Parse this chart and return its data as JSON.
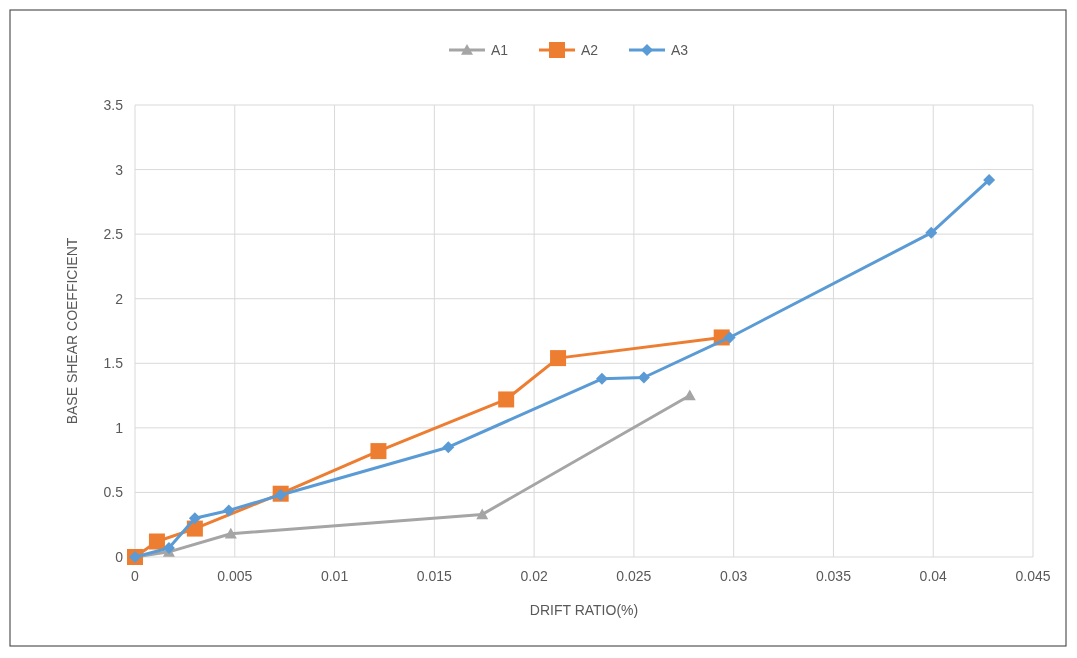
{
  "chart_data": {
    "type": "line",
    "xlabel": "DRIFT RATIO(%)",
    "ylabel": "BASE SHEAR COEFFICIENT",
    "xlim": [
      0,
      0.045
    ],
    "xticks": [
      0,
      0.005,
      0.01,
      0.015,
      0.02,
      0.025,
      0.03,
      0.035,
      0.04,
      0.045
    ],
    "ylim": [
      0,
      3.5
    ],
    "yticks": [
      0,
      0.5,
      1,
      1.5,
      2,
      2.5,
      3,
      3.5
    ],
    "grid": true,
    "legend": "top",
    "line_style": "solid",
    "series": [
      {
        "name": "A1",
        "color": "#a5a5a5",
        "marker": "triangle",
        "x": [
          0,
          0.0017,
          0.0048,
          0.0174,
          0.0278
        ],
        "values": [
          0,
          0.04,
          0.18,
          0.33,
          1.25
        ]
      },
      {
        "name": "A2",
        "color": "#ed7d31",
        "marker": "square",
        "x": [
          0,
          0.0011,
          0.003,
          0.0073,
          0.0122,
          0.0186,
          0.0212,
          0.0294
        ],
        "values": [
          0,
          0.12,
          0.22,
          0.49,
          0.82,
          1.22,
          1.54,
          1.7
        ]
      },
      {
        "name": "A3",
        "color": "#5b9bd5",
        "marker": "diamond",
        "x": [
          0,
          0.0017,
          0.003,
          0.0047,
          0.0073,
          0.0157,
          0.0234,
          0.0255,
          0.0298,
          0.0399,
          0.0428
        ],
        "values": [
          0,
          0.07,
          0.3,
          0.36,
          0.48,
          0.85,
          1.38,
          1.39,
          1.7,
          2.51,
          2.92
        ]
      }
    ]
  }
}
